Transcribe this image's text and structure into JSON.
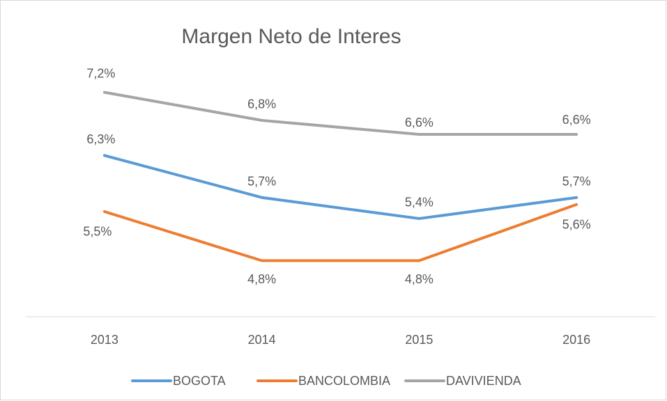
{
  "chart_data": {
    "type": "line",
    "title": "Margen Neto de Interes",
    "categories": [
      "2013",
      "2014",
      "2015",
      "2016"
    ],
    "ylim": [
      4,
      8
    ],
    "legend": "bottom",
    "series": [
      {
        "name": "BOGOTA",
        "color": "#5b9bd5",
        "values": [
          6.3,
          5.7,
          5.4,
          5.7
        ],
        "value_labels": [
          "6,3%",
          "5,7%",
          "5,4%",
          "5,7%"
        ]
      },
      {
        "name": "BANCOLOMBIA",
        "color": "#ed7d31",
        "values": [
          5.5,
          4.8,
          4.8,
          5.6
        ],
        "value_labels": [
          "5,5%",
          "4,8%",
          "4,8%",
          "5,6%"
        ]
      },
      {
        "name": "DAVIVIENDA",
        "color": "#a5a5a5",
        "values": [
          7.2,
          6.8,
          6.6,
          6.6
        ],
        "value_labels": [
          "7,2%",
          "6,8%",
          "6,6%",
          "6,6%"
        ]
      }
    ]
  }
}
